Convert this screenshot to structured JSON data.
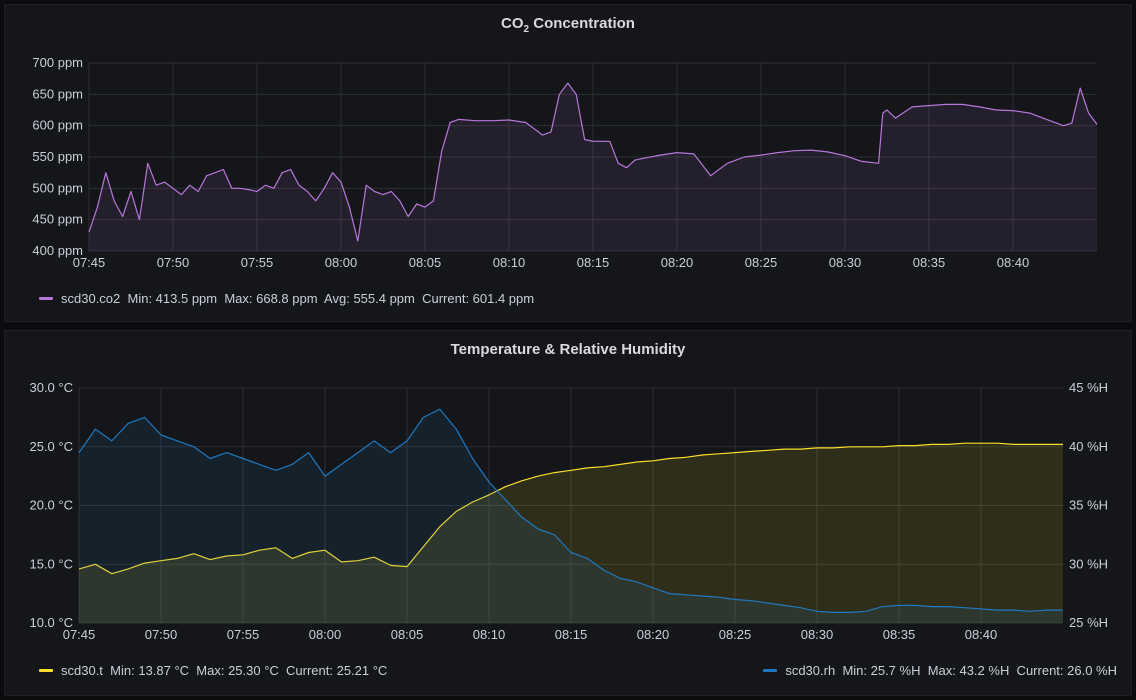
{
  "panels": {
    "co2": {
      "title_main": "CO",
      "title_sub": "2",
      "title_rest": " Concentration",
      "legend": {
        "series_name": "scd30.co2",
        "stats": "Min: 413.5 ppm  Max: 668.8 ppm  Avg: 555.4 ppm  Current: 601.4 ppm",
        "color": "#b877d9"
      }
    },
    "th": {
      "title": "Temperature & Relative Humidity",
      "legend_t": {
        "series_name": "scd30.t",
        "stats": "Min: 13.87 °C  Max: 25.30 °C  Current: 25.21 °C",
        "color": "#fade2a"
      },
      "legend_rh": {
        "series_name": "scd30.rh",
        "stats": "Min: 25.7 %H  Max: 43.2 %H  Current: 26.0 %H",
        "color": "#1f78c1"
      }
    }
  },
  "chart_data": [
    {
      "type": "area",
      "title": "CO2 Concentration",
      "x_ticks": [
        "07:45",
        "07:50",
        "07:55",
        "08:00",
        "08:05",
        "08:10",
        "08:15",
        "08:20",
        "08:25",
        "08:30",
        "08:35",
        "08:40"
      ],
      "x_range": [
        "07:45",
        "08:45"
      ],
      "y_ticks": [
        "400 ppm",
        "450 ppm",
        "500 ppm",
        "550 ppm",
        "600 ppm",
        "650 ppm",
        "700 ppm"
      ],
      "ylim": [
        400,
        700
      ],
      "y_unit": "ppm",
      "grid": true,
      "legend_position": "bottom-left",
      "series": [
        {
          "name": "scd30.co2",
          "color": "#b877d9",
          "x": [
            "07:45",
            "07:45:30",
            "07:46",
            "07:46:30",
            "07:47",
            "07:47:30",
            "07:48",
            "07:48:30",
            "07:49",
            "07:49:30",
            "07:50",
            "07:50:30",
            "07:51",
            "07:51:30",
            "07:52",
            "07:52:30",
            "07:53",
            "07:53:30",
            "07:54",
            "07:54:30",
            "07:55",
            "07:55:30",
            "07:56",
            "07:56:30",
            "07:57",
            "07:57:30",
            "07:58",
            "07:58:30",
            "07:59",
            "07:59:30",
            "08:00",
            "08:00:30",
            "08:01",
            "08:01:30",
            "08:02",
            "08:02:30",
            "08:03",
            "08:03:30",
            "08:04",
            "08:04:30",
            "08:05",
            "08:05:30",
            "08:06",
            "08:06:30",
            "08:07",
            "08:08",
            "08:09",
            "08:10",
            "08:11",
            "08:12",
            "08:12:30",
            "08:13",
            "08:13:30",
            "08:14",
            "08:14:30",
            "08:15",
            "08:16",
            "08:16:30",
            "08:17",
            "08:17:30",
            "08:18",
            "08:19",
            "08:20",
            "08:21",
            "08:22",
            "08:22:30",
            "08:23",
            "08:24",
            "08:25",
            "08:26",
            "08:27",
            "08:28",
            "08:29",
            "08:30",
            "08:31",
            "08:32",
            "08:32:15",
            "08:32:30",
            "08:33",
            "08:34",
            "08:35",
            "08:36",
            "08:37",
            "08:38",
            "08:39",
            "08:40",
            "08:41",
            "08:42",
            "08:43",
            "08:43:30",
            "08:44",
            "08:44:30",
            "08:45"
          ],
          "values": [
            430,
            470,
            525,
            480,
            455,
            495,
            450,
            540,
            505,
            510,
            500,
            490,
            505,
            495,
            520,
            525,
            530,
            500,
            500,
            498,
            495,
            505,
            500,
            525,
            530,
            505,
            495,
            480,
            500,
            525,
            510,
            470,
            416,
            505,
            495,
            490,
            495,
            480,
            455,
            475,
            470,
            480,
            560,
            605,
            610,
            608,
            608,
            609,
            605,
            585,
            590,
            650,
            668,
            650,
            578,
            575,
            575,
            540,
            533,
            545,
            548,
            553,
            557,
            555,
            520,
            530,
            540,
            550,
            553,
            557,
            560,
            561,
            558,
            552,
            543,
            540,
            620,
            625,
            612,
            630,
            632,
            634,
            634,
            630,
            625,
            624,
            620,
            610,
            600,
            604,
            660,
            620,
            602
          ]
        }
      ]
    },
    {
      "type": "area",
      "title": "Temperature & Relative Humidity",
      "x_ticks": [
        "07:45",
        "07:50",
        "07:55",
        "08:00",
        "08:05",
        "08:10",
        "08:15",
        "08:20",
        "08:25",
        "08:30",
        "08:35",
        "08:40"
      ],
      "x_range": [
        "07:45",
        "08:45"
      ],
      "y_left_ticks": [
        "10.0 °C",
        "15.0 °C",
        "20.0 °C",
        "25.0 °C",
        "30.0 °C"
      ],
      "y_left_lim": [
        10,
        30
      ],
      "y_right_ticks": [
        "25 %H",
        "30 %H",
        "35 %H",
        "40 %H",
        "45 %H"
      ],
      "y_right_lim": [
        25,
        45
      ],
      "grid": true,
      "legend_position": "bottom",
      "series": [
        {
          "name": "scd30.t",
          "axis": "left",
          "color": "#fade2a",
          "x": [
            "07:45",
            "07:46",
            "07:47",
            "07:48",
            "07:49",
            "07:50",
            "07:51",
            "07:52",
            "07:53",
            "07:54",
            "07:55",
            "07:56",
            "07:57",
            "07:58",
            "07:59",
            "08:00",
            "08:01",
            "08:02",
            "08:03",
            "08:04",
            "08:05",
            "08:06",
            "08:07",
            "08:08",
            "08:09",
            "08:10",
            "08:11",
            "08:12",
            "08:13",
            "08:14",
            "08:15",
            "08:16",
            "08:17",
            "08:18",
            "08:19",
            "08:20",
            "08:21",
            "08:22",
            "08:23",
            "08:24",
            "08:25",
            "08:26",
            "08:27",
            "08:28",
            "08:29",
            "08:30",
            "08:31",
            "08:32",
            "08:33",
            "08:34",
            "08:35",
            "08:36",
            "08:37",
            "08:38",
            "08:39",
            "08:40",
            "08:41",
            "08:42",
            "08:43",
            "08:44",
            "08:45"
          ],
          "values": [
            14.6,
            15.0,
            14.2,
            14.6,
            15.1,
            15.3,
            15.5,
            15.9,
            15.4,
            15.7,
            15.8,
            16.2,
            16.4,
            15.5,
            16.0,
            16.2,
            15.2,
            15.3,
            15.6,
            14.9,
            14.8,
            16.5,
            18.2,
            19.5,
            20.3,
            20.9,
            21.6,
            22.1,
            22.5,
            22.8,
            23.0,
            23.2,
            23.3,
            23.5,
            23.7,
            23.8,
            24.0,
            24.1,
            24.3,
            24.4,
            24.5,
            24.6,
            24.7,
            24.8,
            24.8,
            24.9,
            24.9,
            25.0,
            25.0,
            25.0,
            25.1,
            25.1,
            25.2,
            25.2,
            25.3,
            25.3,
            25.3,
            25.2,
            25.2,
            25.2,
            25.2
          ]
        },
        {
          "name": "scd30.rh",
          "axis": "right",
          "color": "#1f78c1",
          "x": [
            "07:45",
            "07:46",
            "07:47",
            "07:48",
            "07:49",
            "07:50",
            "07:51",
            "07:52",
            "07:53",
            "07:54",
            "07:55",
            "07:56",
            "07:57",
            "07:58",
            "07:59",
            "08:00",
            "08:01",
            "08:02",
            "08:03",
            "08:04",
            "08:05",
            "08:06",
            "08:07",
            "08:08",
            "08:09",
            "08:10",
            "08:11",
            "08:12",
            "08:13",
            "08:14",
            "08:15",
            "08:16",
            "08:17",
            "08:18",
            "08:19",
            "08:20",
            "08:21",
            "08:22",
            "08:23",
            "08:24",
            "08:25",
            "08:26",
            "08:27",
            "08:28",
            "08:29",
            "08:30",
            "08:31",
            "08:32",
            "08:33",
            "08:34",
            "08:35",
            "08:36",
            "08:37",
            "08:38",
            "08:39",
            "08:40",
            "08:41",
            "08:42",
            "08:43",
            "08:44",
            "08:45"
          ],
          "values": [
            39.5,
            41.5,
            40.5,
            42.0,
            42.5,
            41.0,
            40.5,
            40.0,
            39.0,
            39.5,
            39.0,
            38.5,
            38.0,
            38.5,
            39.5,
            37.5,
            38.5,
            39.5,
            40.5,
            39.5,
            40.5,
            42.5,
            43.2,
            41.5,
            39.0,
            37.0,
            35.5,
            34.0,
            33.0,
            32.5,
            31.0,
            30.5,
            29.5,
            28.8,
            28.5,
            28.0,
            27.5,
            27.4,
            27.3,
            27.2,
            27.0,
            26.9,
            26.7,
            26.5,
            26.3,
            26.0,
            25.9,
            25.9,
            26.0,
            26.4,
            26.5,
            26.5,
            26.4,
            26.4,
            26.3,
            26.2,
            26.1,
            26.1,
            26.0,
            26.1,
            26.1
          ]
        }
      ]
    }
  ]
}
